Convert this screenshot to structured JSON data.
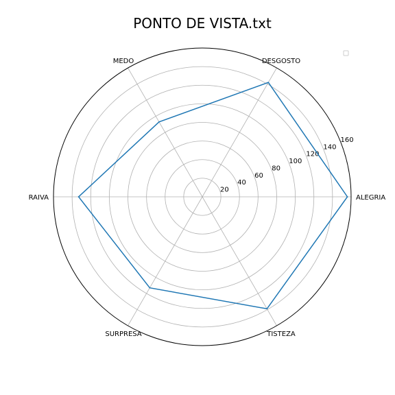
{
  "chart_data": {
    "type": "radar",
    "title": "PONTO DE VISTA.txt",
    "categories": [
      "ALEGRIA",
      "DESGOSTO",
      "MEDO",
      "RAIVA",
      "SURPRESA",
      "TISTEZA"
    ],
    "category_angles_deg": [
      0,
      60,
      120,
      180,
      240,
      300
    ],
    "series": [
      {
        "values": [
          156,
          142,
          93,
          133,
          113,
          139
        ]
      }
    ],
    "radial_ticks": [
      20,
      40,
      60,
      80,
      100,
      120,
      140,
      160
    ],
    "rlim": [
      0,
      160
    ],
    "grid": true,
    "legend": {
      "placement": "top-right",
      "entries": []
    },
    "colors": {
      "series": "#1f77b4",
      "grid": "#b0b0b0",
      "frame": "#000000"
    }
  }
}
